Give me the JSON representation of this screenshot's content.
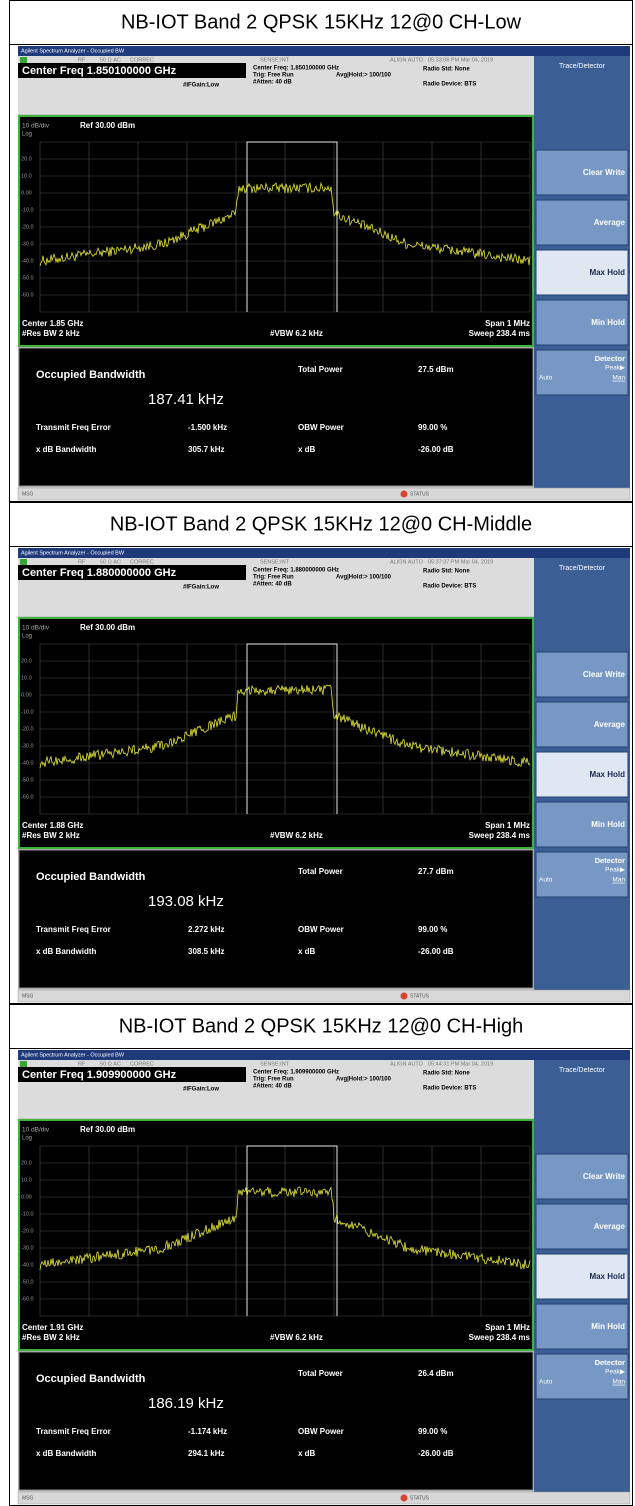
{
  "panels": [
    {
      "title": "NB-IOT Band 2 QPSK 15KHz 12@0 CH-Low",
      "screen": {
        "window_title": "Agilent Spectrum Analyzer - Occupied BW",
        "status": [
          "RF",
          "50 Ω AC",
          "CORREC",
          "SENSE:INT",
          "ALIGN AUTO",
          "05:33:06 PM Mar 04, 2019"
        ],
        "center_freq": "Center Freq 1.850100000 GHz",
        "if_gain": "#IFGain:Low",
        "settings": [
          "Center Freq: 1.850100000 GHz",
          "Trig: Free Run",
          "#Atten: 40 dB"
        ],
        "avg_hold": "Avg|Hold:> 100/100",
        "radio_std": "Radio Std: None",
        "radio_device": "Radio Device: BTS",
        "scale": "10 dB/div",
        "ref": "Ref 30.00 dBm",
        "log": "Log",
        "y_labels": [
          "20.0",
          "10.0",
          "0.00",
          "-10.0",
          "-20.0",
          "-30.0",
          "-40.0",
          "-50.0",
          "-60.0"
        ],
        "center": "Center 1.85 GHz",
        "res_bw": "#Res BW 2 kHz",
        "vbw": "#VBW 6.2 kHz",
        "span": "Span 1 MHz",
        "sweep": "Sweep 238.4 ms",
        "results": {
          "obw_label": "Occupied Bandwidth",
          "obw": "187.41 kHz",
          "total_power_label": "Total Power",
          "total_power": "27.5 dBm",
          "freq_error_label": "Transmit Freq Error",
          "freq_error": "-1.500 kHz",
          "obw_power_label": "OBW Power",
          "obw_power": "99.00 %",
          "xdb_bw_label": "x dB Bandwidth",
          "xdb_bw": "305.7 kHz",
          "xdb_label": "x dB",
          "xdb": "-26.00 dB"
        },
        "menu_title": "Trace/Detector",
        "softkeys": [
          "Clear Write",
          "Average",
          "Max Hold",
          "Min Hold"
        ],
        "detector": {
          "label": "Detector",
          "value": "Peak▶",
          "auto": "Auto",
          "man": "Man"
        },
        "msg": "MSG",
        "status_bar": "STATUS"
      }
    },
    {
      "title": "NB-IOT Band 2 QPSK 15KHz 12@0 CH-Middle",
      "screen": {
        "window_title": "Agilent Spectrum Analyzer - Occupied BW",
        "status": [
          "RF",
          "50 Ω AC",
          "CORREC",
          "SENSE:INT",
          "ALIGN AUTO",
          "05:37:37 PM Mar 04, 2019"
        ],
        "center_freq": "Center Freq 1.880000000 GHz",
        "if_gain": "#IFGain:Low",
        "settings": [
          "Center Freq: 1.880000000 GHz",
          "Trig: Free Run",
          "#Atten: 40 dB"
        ],
        "avg_hold": "Avg|Hold:> 100/100",
        "radio_std": "Radio Std: None",
        "radio_device": "Radio Device: BTS",
        "scale": "10 dB/div",
        "ref": "Ref 30.00 dBm",
        "log": "Log",
        "y_labels": [
          "20.0",
          "10.0",
          "0.00",
          "-10.0",
          "-20.0",
          "-30.0",
          "-40.0",
          "-50.0",
          "-60.0"
        ],
        "center": "Center 1.88 GHz",
        "res_bw": "#Res BW 2 kHz",
        "vbw": "#VBW 6.2 kHz",
        "span": "Span 1 MHz",
        "sweep": "Sweep 238.4 ms",
        "results": {
          "obw_label": "Occupied Bandwidth",
          "obw": "193.08 kHz",
          "total_power_label": "Total Power",
          "total_power": "27.7 dBm",
          "freq_error_label": "Transmit Freq Error",
          "freq_error": "2.272 kHz",
          "obw_power_label": "OBW Power",
          "obw_power": "99.00 %",
          "xdb_bw_label": "x dB Bandwidth",
          "xdb_bw": "308.5 kHz",
          "xdb_label": "x dB",
          "xdb": "-26.00 dB"
        },
        "menu_title": "Trace/Detector",
        "softkeys": [
          "Clear Write",
          "Average",
          "Max Hold",
          "Min Hold"
        ],
        "detector": {
          "label": "Detector",
          "value": "Peak▶",
          "auto": "Auto",
          "man": "Man"
        },
        "msg": "MSG",
        "status_bar": "STATUS"
      }
    },
    {
      "title": "NB-IOT Band 2 QPSK 15KHz 12@0 CH-High",
      "screen": {
        "window_title": "Agilent Spectrum Analyzer - Occupied BW",
        "status": [
          "RF",
          "50 Ω AC",
          "CORREC",
          "SENSE:INT",
          "ALIGN AUTO",
          "05:44:31 PM Mar 04, 2019"
        ],
        "center_freq": "Center Freq 1.909900000 GHz",
        "if_gain": "#IFGain:Low",
        "settings": [
          "Center Freq: 1.909900000 GHz",
          "Trig: Free Run",
          "#Atten: 40 dB"
        ],
        "avg_hold": "Avg|Hold:> 100/100",
        "radio_std": "Radio Std: None",
        "radio_device": "Radio Device: BTS",
        "scale": "10 dB/div",
        "ref": "Ref 30.00 dBm",
        "log": "Log",
        "y_labels": [
          "20.0",
          "10.0",
          "0.00",
          "-10.0",
          "-20.0",
          "-30.0",
          "-40.0",
          "-50.0",
          "-60.0"
        ],
        "center": "Center 1.91 GHz",
        "res_bw": "#Res BW 2 kHz",
        "vbw": "#VBW 6.2 kHz",
        "span": "Span 1 MHz",
        "sweep": "Sweep 238.4 ms",
        "results": {
          "obw_label": "Occupied Bandwidth",
          "obw": "186.19 kHz",
          "total_power_label": "Total Power",
          "total_power": "26.4 dBm",
          "freq_error_label": "Transmit Freq Error",
          "freq_error": "-1.174 kHz",
          "obw_power_label": "OBW Power",
          "obw_power": "99.00 %",
          "xdb_bw_label": "x dB Bandwidth",
          "xdb_bw": "294.1 kHz",
          "xdb_label": "x dB",
          "xdb": "-26.00 dB"
        },
        "menu_title": "Trace/Detector",
        "softkeys": [
          "Clear Write",
          "Average",
          "Max Hold",
          "Min Hold"
        ],
        "detector": {
          "label": "Detector",
          "value": "Peak▶",
          "auto": "Auto",
          "man": "Man"
        },
        "msg": "MSG",
        "status_bar": "STATUS"
      }
    }
  ]
}
